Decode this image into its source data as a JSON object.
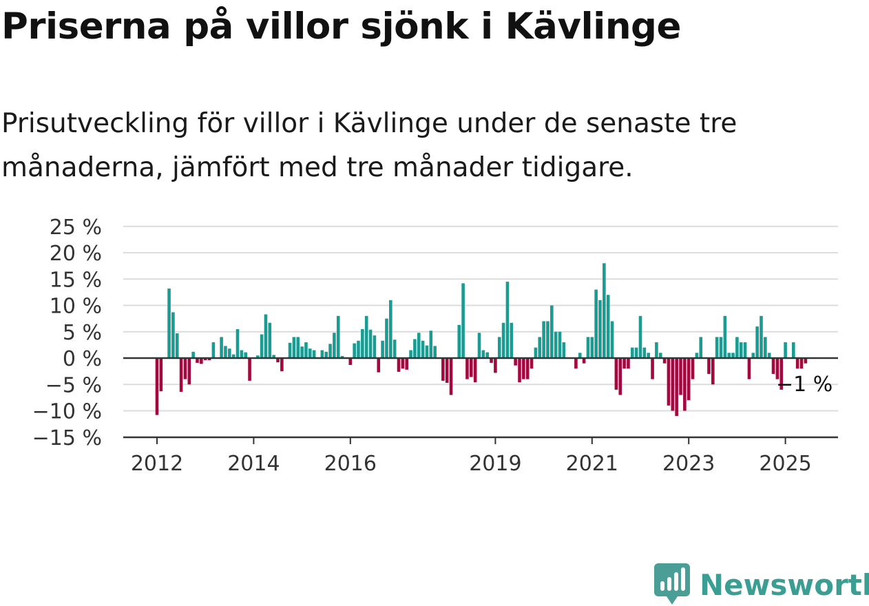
{
  "title": "Priserna på villor sjönk i Kävlinge",
  "subtitle": "Prisutveckling för villor i Kävlinge under de senaste tre månaderna, jämfört med tre månader tidigare.",
  "brand": "Newsworthy",
  "colors": {
    "positive": "#1a9c92",
    "negative": "#a3093f",
    "grid": "#dcdcdc",
    "axis": "#333333",
    "brand": "#3b9e93"
  },
  "chart_data": {
    "type": "bar",
    "unit": "%",
    "ylim": [
      -15,
      25
    ],
    "yticks": [
      -15,
      -10,
      -5,
      0,
      5,
      10,
      15,
      20,
      25
    ],
    "ytick_labels": [
      "−15 %",
      "−10 %",
      "−5 %",
      "0 %",
      "5 %",
      "10 %",
      "15 %",
      "20 %",
      "25 %"
    ],
    "xticks": [
      {
        "label": "2012",
        "date": "2012-01"
      },
      {
        "label": "2014",
        "date": "2014-01"
      },
      {
        "label": "2016",
        "date": "2016-01"
      },
      {
        "label": "2019",
        "date": "2019-01"
      },
      {
        "label": "2021",
        "date": "2021-01"
      },
      {
        "label": "2023",
        "date": "2023-01"
      },
      {
        "label": "2025",
        "date": "2025-01"
      }
    ],
    "end_label": "−1 %",
    "series": [
      {
        "values": [
          {
            "date": "2012-01",
            "value": -10.8
          },
          {
            "date": "2012-02",
            "value": -6.3
          },
          {
            "date": "2012-03",
            "value": 0
          },
          {
            "date": "2012-04",
            "value": 13.2
          },
          {
            "date": "2012-05",
            "value": 8.7
          },
          {
            "date": "2012-06",
            "value": 4.7
          },
          {
            "date": "2012-07",
            "value": -6.4
          },
          {
            "date": "2012-08",
            "value": -4.0
          },
          {
            "date": "2012-09",
            "value": -5.0
          },
          {
            "date": "2012-10",
            "value": 1.2
          },
          {
            "date": "2012-11",
            "value": -0.9
          },
          {
            "date": "2012-12",
            "value": -1.1
          },
          {
            "date": "2013-01",
            "value": -0.4
          },
          {
            "date": "2013-02",
            "value": -0.4
          },
          {
            "date": "2013-03",
            "value": 3.0
          },
          {
            "date": "2013-04",
            "value": 0
          },
          {
            "date": "2013-05",
            "value": 4.0
          },
          {
            "date": "2013-06",
            "value": 2.3
          },
          {
            "date": "2013-07",
            "value": 1.8
          },
          {
            "date": "2013-08",
            "value": 0.7
          },
          {
            "date": "2013-09",
            "value": 5.5
          },
          {
            "date": "2013-10",
            "value": 1.5
          },
          {
            "date": "2013-11",
            "value": 1.1
          },
          {
            "date": "2013-12",
            "value": -4.3
          },
          {
            "date": "2014-01",
            "value": 0
          },
          {
            "date": "2014-02",
            "value": 0.5
          },
          {
            "date": "2014-03",
            "value": 4.5
          },
          {
            "date": "2014-04",
            "value": 8.3
          },
          {
            "date": "2014-05",
            "value": 6.7
          },
          {
            "date": "2014-06",
            "value": 0.6
          },
          {
            "date": "2014-07",
            "value": -0.8
          },
          {
            "date": "2014-08",
            "value": -2.5
          },
          {
            "date": "2014-09",
            "value": 0
          },
          {
            "date": "2014-10",
            "value": 2.9
          },
          {
            "date": "2014-11",
            "value": 4.0
          },
          {
            "date": "2014-12",
            "value": 4.0
          },
          {
            "date": "2015-01",
            "value": 2.2
          },
          {
            "date": "2015-02",
            "value": 3.0
          },
          {
            "date": "2015-03",
            "value": 1.8
          },
          {
            "date": "2015-04",
            "value": 1.5
          },
          {
            "date": "2015-05",
            "value": 0
          },
          {
            "date": "2015-06",
            "value": 1.5
          },
          {
            "date": "2015-07",
            "value": 1.2
          },
          {
            "date": "2015-08",
            "value": 2.7
          },
          {
            "date": "2015-09",
            "value": 4.8
          },
          {
            "date": "2015-10",
            "value": 8.0
          },
          {
            "date": "2015-11",
            "value": 0.4
          },
          {
            "date": "2015-12",
            "value": 0
          },
          {
            "date": "2016-01",
            "value": -1.3
          },
          {
            "date": "2016-02",
            "value": 2.8
          },
          {
            "date": "2016-03",
            "value": 3.3
          },
          {
            "date": "2016-04",
            "value": 5.5
          },
          {
            "date": "2016-05",
            "value": 8.0
          },
          {
            "date": "2016-06",
            "value": 5.4
          },
          {
            "date": "2016-07",
            "value": 4.3
          },
          {
            "date": "2016-08",
            "value": -2.7
          },
          {
            "date": "2016-09",
            "value": 3.3
          },
          {
            "date": "2016-10",
            "value": 7.5
          },
          {
            "date": "2016-11",
            "value": 11.0
          },
          {
            "date": "2016-12",
            "value": 3.5
          },
          {
            "date": "2017-01",
            "value": -2.6
          },
          {
            "date": "2017-02",
            "value": -2.0
          },
          {
            "date": "2017-03",
            "value": -2.2
          },
          {
            "date": "2017-04",
            "value": 1.5
          },
          {
            "date": "2017-05",
            "value": 3.6
          },
          {
            "date": "2017-06",
            "value": 4.8
          },
          {
            "date": "2017-07",
            "value": 3.3
          },
          {
            "date": "2017-08",
            "value": 2.4
          },
          {
            "date": "2017-09",
            "value": 5.2
          },
          {
            "date": "2017-10",
            "value": 2.3
          },
          {
            "date": "2017-11",
            "value": 0
          },
          {
            "date": "2017-12",
            "value": -4.3
          },
          {
            "date": "2018-01",
            "value": -4.7
          },
          {
            "date": "2018-02",
            "value": -7.0
          },
          {
            "date": "2018-03",
            "value": 0
          },
          {
            "date": "2018-04",
            "value": 6.3
          },
          {
            "date": "2018-05",
            "value": 14.2
          },
          {
            "date": "2018-06",
            "value": -4.0
          },
          {
            "date": "2018-07",
            "value": -3.6
          },
          {
            "date": "2018-08",
            "value": -4.6
          },
          {
            "date": "2018-09",
            "value": 4.8
          },
          {
            "date": "2018-10",
            "value": 1.5
          },
          {
            "date": "2018-11",
            "value": 1.1
          },
          {
            "date": "2018-12",
            "value": -0.9
          },
          {
            "date": "2019-01",
            "value": -2.8
          },
          {
            "date": "2019-02",
            "value": 4.0
          },
          {
            "date": "2019-03",
            "value": 6.7
          },
          {
            "date": "2019-04",
            "value": 14.5
          },
          {
            "date": "2019-05",
            "value": 6.7
          },
          {
            "date": "2019-06",
            "value": -1.4
          },
          {
            "date": "2019-07",
            "value": -4.6
          },
          {
            "date": "2019-08",
            "value": -4.0
          },
          {
            "date": "2019-09",
            "value": -4.0
          },
          {
            "date": "2019-10",
            "value": -2.0
          },
          {
            "date": "2019-11",
            "value": 2.0
          },
          {
            "date": "2019-12",
            "value": 4.0
          },
          {
            "date": "2020-01",
            "value": 7.0
          },
          {
            "date": "2020-02",
            "value": 7.0
          },
          {
            "date": "2020-03",
            "value": 10.0
          },
          {
            "date": "2020-04",
            "value": 5.0
          },
          {
            "date": "2020-05",
            "value": 5.0
          },
          {
            "date": "2020-06",
            "value": 3.0
          },
          {
            "date": "2020-07",
            "value": 0
          },
          {
            "date": "2020-08",
            "value": 0
          },
          {
            "date": "2020-09",
            "value": -2.0
          },
          {
            "date": "2020-10",
            "value": 1.0
          },
          {
            "date": "2020-11",
            "value": -1.0
          },
          {
            "date": "2020-12",
            "value": 4.0
          },
          {
            "date": "2021-01",
            "value": 4.0
          },
          {
            "date": "2021-02",
            "value": 13.0
          },
          {
            "date": "2021-03",
            "value": 11.0
          },
          {
            "date": "2021-04",
            "value": 18.0
          },
          {
            "date": "2021-05",
            "value": 12.0
          },
          {
            "date": "2021-06",
            "value": 7.0
          },
          {
            "date": "2021-07",
            "value": -6.0
          },
          {
            "date": "2021-08",
            "value": -7.0
          },
          {
            "date": "2021-09",
            "value": -2.0
          },
          {
            "date": "2021-10",
            "value": -2.0
          },
          {
            "date": "2021-11",
            "value": 2.0
          },
          {
            "date": "2021-12",
            "value": 2.0
          },
          {
            "date": "2022-01",
            "value": 8.0
          },
          {
            "date": "2022-02",
            "value": 2.0
          },
          {
            "date": "2022-03",
            "value": 1.0
          },
          {
            "date": "2022-04",
            "value": -4.0
          },
          {
            "date": "2022-05",
            "value": 3.0
          },
          {
            "date": "2022-06",
            "value": 1.0
          },
          {
            "date": "2022-07",
            "value": -1.0
          },
          {
            "date": "2022-08",
            "value": -9.0
          },
          {
            "date": "2022-09",
            "value": -10.0
          },
          {
            "date": "2022-10",
            "value": -11.0
          },
          {
            "date": "2022-11",
            "value": -7.0
          },
          {
            "date": "2022-12",
            "value": -10.0
          },
          {
            "date": "2023-01",
            "value": -8.0
          },
          {
            "date": "2023-02",
            "value": -4.0
          },
          {
            "date": "2023-03",
            "value": 1.0
          },
          {
            "date": "2023-04",
            "value": 4.0
          },
          {
            "date": "2023-05",
            "value": 0
          },
          {
            "date": "2023-06",
            "value": -3.0
          },
          {
            "date": "2023-07",
            "value": -5.0
          },
          {
            "date": "2023-08",
            "value": 4.0
          },
          {
            "date": "2023-09",
            "value": 4.0
          },
          {
            "date": "2023-10",
            "value": 8.0
          },
          {
            "date": "2023-11",
            "value": 1.0
          },
          {
            "date": "2023-12",
            "value": 1.0
          },
          {
            "date": "2024-01",
            "value": 4.0
          },
          {
            "date": "2024-02",
            "value": 3.0
          },
          {
            "date": "2024-03",
            "value": 3.0
          },
          {
            "date": "2024-04",
            "value": -4.0
          },
          {
            "date": "2024-05",
            "value": 1.0
          },
          {
            "date": "2024-06",
            "value": 6.0
          },
          {
            "date": "2024-07",
            "value": 8.0
          },
          {
            "date": "2024-08",
            "value": 4.0
          },
          {
            "date": "2024-09",
            "value": 1.0
          },
          {
            "date": "2024-10",
            "value": -3.0
          },
          {
            "date": "2024-11",
            "value": -4.0
          },
          {
            "date": "2024-12",
            "value": -6.0
          },
          {
            "date": "2025-01",
            "value": 3.0
          },
          {
            "date": "2025-02",
            "value": 0
          },
          {
            "date": "2025-03",
            "value": 3.0
          },
          {
            "date": "2025-04",
            "value": -2.0
          },
          {
            "date": "2025-05",
            "value": -2.0
          },
          {
            "date": "2025-06",
            "value": -1.0
          }
        ]
      }
    ]
  }
}
